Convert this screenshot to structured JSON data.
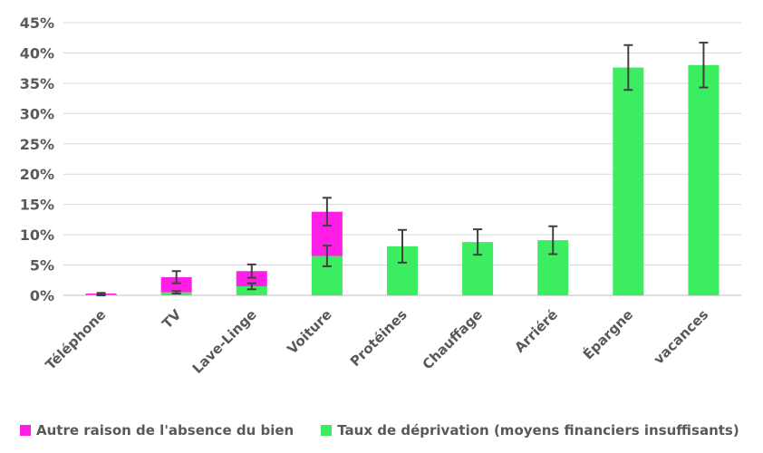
{
  "chart_data": {
    "type": "bar",
    "stacked": true,
    "title": "",
    "xlabel": "",
    "ylabel": "",
    "ylim": [
      0,
      0.45
    ],
    "yticks": [
      "0%",
      "5%",
      "10%",
      "15%",
      "20%",
      "25%",
      "30%",
      "35%",
      "40%",
      "45%"
    ],
    "grid": true,
    "legend_position": "bottom",
    "categories": [
      "Téléphone",
      "TV",
      "Lave-Linge",
      "Voiture",
      "Protéines",
      "Chauffage",
      "Arriéré",
      "Épargne",
      "vacances"
    ],
    "series": [
      {
        "name": "Taux de déprivation (moyens financiers insuffisants)",
        "color": "#3ded61",
        "values": [
          0.001,
          0.005,
          0.015,
          0.065,
          0.081,
          0.088,
          0.091,
          0.376,
          0.38
        ],
        "error": [
          0.001,
          0.002,
          0.005,
          0.017,
          0.027,
          0.021,
          0.023,
          0.037,
          0.037
        ]
      },
      {
        "name": "Autre raison de l'absence du bien",
        "color": "#ff1ee6",
        "values": [
          0.002,
          0.025,
          0.025,
          0.073,
          0,
          0,
          0,
          0,
          0
        ],
        "error": [
          0.001,
          0.01,
          0.011,
          0.023,
          0,
          0,
          0,
          0,
          0
        ]
      }
    ],
    "legend": [
      {
        "label": "Autre raison de l'absence du bien",
        "color": "#ff1ee6"
      },
      {
        "label": "Taux de déprivation (moyens financiers insuffisants)",
        "color": "#3ded61"
      }
    ]
  }
}
